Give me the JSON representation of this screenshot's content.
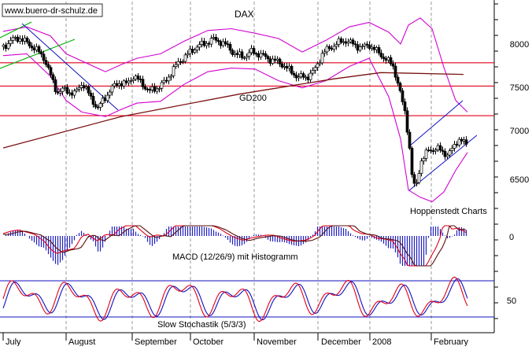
{
  "chart_data": [
    {
      "type": "candlestick",
      "title": "DAX",
      "watermark": "www.buero-dr-schulz.de",
      "source_note": "Hoppenstedt Charts",
      "x_axis_labels": [
        "July",
        "August",
        "September",
        "October",
        "November",
        "December",
        "2008",
        "February"
      ],
      "y_ticks": [
        6500,
        7000,
        7500,
        8000
      ],
      "ylim": [
        6150,
        8400
      ],
      "grid": "vertical-dashed",
      "moving_average_label": "GD200",
      "horizontal_lines": [
        7800,
        7540,
        7210
      ],
      "price_path": [
        [
          0,
          7980
        ],
        [
          10,
          8050
        ],
        [
          20,
          8080
        ],
        [
          30,
          8020
        ],
        [
          40,
          7960
        ],
        [
          52,
          7850
        ],
        [
          58,
          7700
        ],
        [
          68,
          7470
        ],
        [
          78,
          7500
        ],
        [
          90,
          7450
        ],
        [
          100,
          7580
        ],
        [
          110,
          7420
        ],
        [
          120,
          7290
        ],
        [
          128,
          7400
        ],
        [
          136,
          7500
        ],
        [
          146,
          7580
        ],
        [
          156,
          7560
        ],
        [
          165,
          7650
        ],
        [
          175,
          7580
        ],
        [
          185,
          7480
        ],
        [
          195,
          7520
        ],
        [
          205,
          7580
        ],
        [
          215,
          7720
        ],
        [
          225,
          7830
        ],
        [
          235,
          7900
        ],
        [
          245,
          7980
        ],
        [
          255,
          8010
        ],
        [
          265,
          8060
        ],
        [
          275,
          8040
        ],
        [
          285,
          7980
        ],
        [
          295,
          7890
        ],
        [
          305,
          7870
        ],
        [
          315,
          7920
        ],
        [
          325,
          7900
        ],
        [
          335,
          7850
        ],
        [
          345,
          7820
        ],
        [
          355,
          7780
        ],
        [
          365,
          7700
        ],
        [
          375,
          7640
        ],
        [
          385,
          7640
        ],
        [
          395,
          7710
        ],
        [
          405,
          7900
        ],
        [
          415,
          7970
        ],
        [
          425,
          8020
        ],
        [
          435,
          8050
        ],
        [
          445,
          8000
        ],
        [
          455,
          7970
        ],
        [
          465,
          8000
        ],
        [
          475,
          7920
        ],
        [
          485,
          7850
        ],
        [
          495,
          7760
        ],
        [
          500,
          7620
        ],
        [
          505,
          7420
        ],
        [
          510,
          7250
        ],
        [
          515,
          6950
        ],
        [
          520,
          6450
        ],
        [
          524,
          6400
        ],
        [
          530,
          6700
        ],
        [
          540,
          6820
        ],
        [
          550,
          6850
        ],
        [
          558,
          6800
        ],
        [
          565,
          6780
        ],
        [
          572,
          6850
        ],
        [
          578,
          6960
        ],
        [
          584,
          6920
        ],
        [
          590,
          6850
        ]
      ],
      "ma200_path": [
        [
          0,
          6850
        ],
        [
          150,
          7200
        ],
        [
          300,
          7450
        ],
        [
          420,
          7620
        ],
        [
          480,
          7690
        ],
        [
          585,
          7670
        ]
      ],
      "bollinger_upper": [
        [
          0,
          8150
        ],
        [
          30,
          8200
        ],
        [
          60,
          8100
        ],
        [
          80,
          7900
        ],
        [
          100,
          7820
        ],
        [
          130,
          7700
        ],
        [
          150,
          7780
        ],
        [
          170,
          7850
        ],
        [
          200,
          7900
        ],
        [
          230,
          8040
        ],
        [
          260,
          8160
        ],
        [
          290,
          8180
        ],
        [
          320,
          8130
        ],
        [
          350,
          8070
        ],
        [
          380,
          7920
        ],
        [
          410,
          8050
        ],
        [
          440,
          8200
        ],
        [
          465,
          8250
        ],
        [
          490,
          8140
        ],
        [
          505,
          8010
        ],
        [
          515,
          8220
        ],
        [
          530,
          8300
        ],
        [
          545,
          8180
        ],
        [
          560,
          7750
        ],
        [
          575,
          7380
        ],
        [
          590,
          7250
        ]
      ],
      "bollinger_lower": [
        [
          0,
          7880
        ],
        [
          30,
          7900
        ],
        [
          60,
          7650
        ],
        [
          80,
          7380
        ],
        [
          100,
          7250
        ],
        [
          130,
          7200
        ],
        [
          150,
          7280
        ],
        [
          170,
          7350
        ],
        [
          200,
          7370
        ],
        [
          230,
          7560
        ],
        [
          260,
          7700
        ],
        [
          290,
          7740
        ],
        [
          320,
          7730
        ],
        [
          350,
          7600
        ],
        [
          380,
          7520
        ],
        [
          410,
          7600
        ],
        [
          440,
          7760
        ],
        [
          465,
          7850
        ],
        [
          490,
          7420
        ],
        [
          505,
          6950
        ],
        [
          515,
          6380
        ],
        [
          530,
          6300
        ],
        [
          545,
          6250
        ],
        [
          560,
          6360
        ],
        [
          575,
          6600
        ],
        [
          590,
          6800
        ]
      ]
    },
    {
      "type": "histogram-line",
      "label": "MACD (12/26/9) mit Histogramm",
      "y_ticks": [
        0
      ]
    },
    {
      "type": "line",
      "label": "Slow Stochastik (5/3/3)",
      "y_ticks": [
        50
      ]
    }
  ]
}
